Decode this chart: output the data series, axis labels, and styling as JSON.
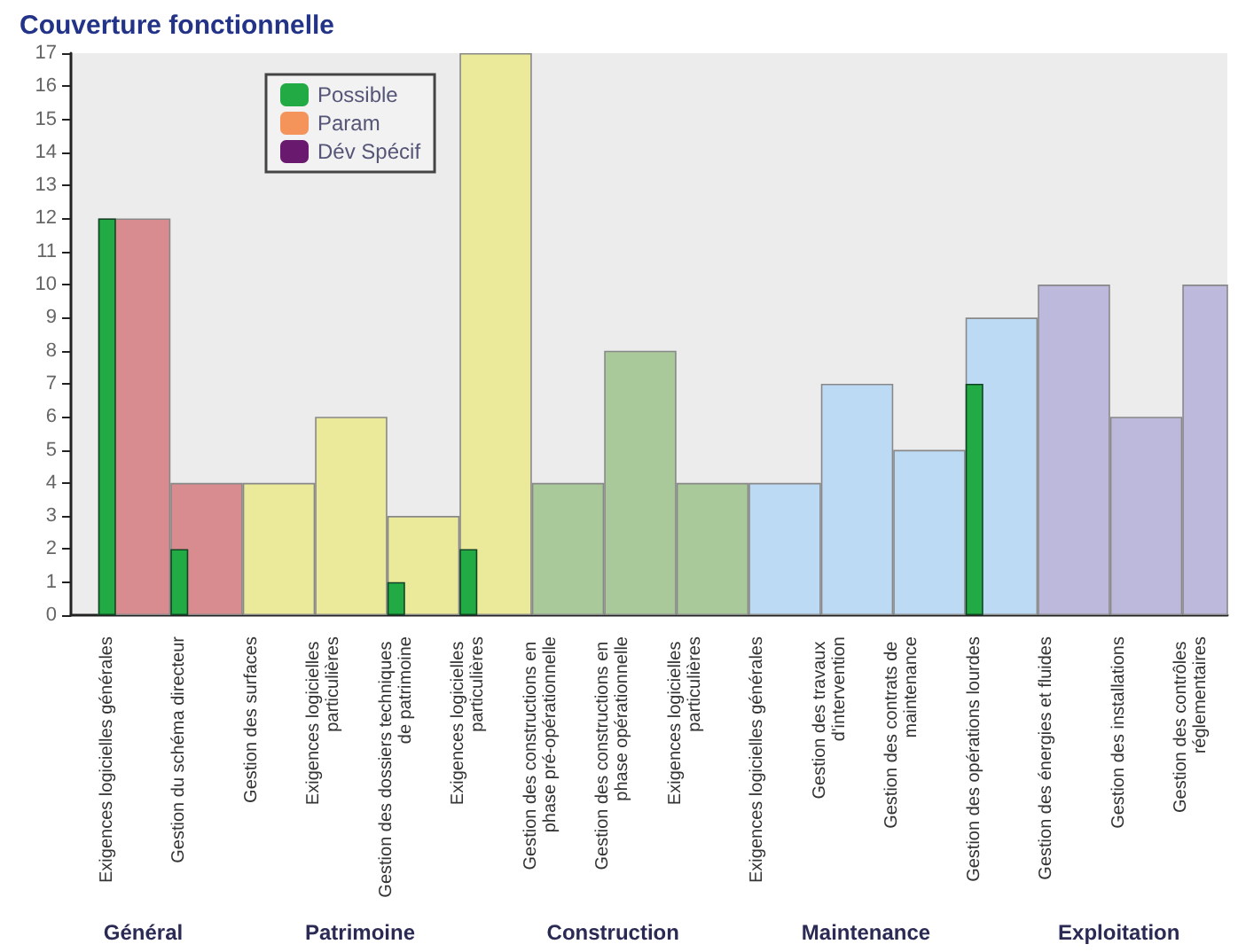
{
  "chart_data": {
    "type": "bar",
    "title": "Couverture fonctionnelle",
    "categories": [
      "Exigences logicielles générales",
      "Gestion du schéma directeur",
      "Gestion des surfaces",
      "Exigences logicielles particulières",
      "Gestion des dossiers techniques de patrimoine",
      "Exigences logicielles particulières",
      "Gestion des constructions en phase pré-opérationnelle",
      "Gestion des constructions en phase opérationnelle",
      "Exigences logicielles particulières",
      "Exigences logicielles générales",
      "Gestion des travaux d'intervention",
      "Gestion des contrats de maintenance",
      "Gestion des opérations lourdes",
      "Gestion des énergies et fluides",
      "Gestion des installations",
      "Gestion des contrôles réglementaires"
    ],
    "series": [
      {
        "colors": [
          "#d98c8f",
          "#d98c8f",
          "#eaea9a",
          "#eaea9a",
          "#eaea9a",
          "#eaea9a",
          "#a9c99a",
          "#a9c99a",
          "#a9c99a",
          "#bcdaf3",
          "#bcdaf3",
          "#bcdaf3",
          "#bcdaf3",
          "#bdb9dc",
          "#bdb9dc",
          "#bdb9dc"
        ],
        "values": [
          12,
          4,
          4,
          6,
          3,
          17,
          4,
          8,
          4,
          4,
          7,
          5,
          9,
          10,
          6,
          10
        ]
      },
      {
        "name": "Possible",
        "color": "#22aa44",
        "values": [
          12,
          2,
          null,
          null,
          1,
          2,
          null,
          null,
          null,
          null,
          null,
          null,
          7,
          null,
          null,
          null
        ]
      },
      {
        "name": "Param",
        "color": "#f4945a",
        "values": [
          null,
          null,
          null,
          null,
          null,
          null,
          null,
          null,
          null,
          null,
          null,
          null,
          null,
          null,
          null,
          null
        ]
      },
      {
        "name": "Dév Spécif",
        "color": "#6a1a6e",
        "values": [
          null,
          null,
          null,
          null,
          null,
          null,
          null,
          null,
          null,
          null,
          null,
          null,
          null,
          null,
          null,
          null
        ]
      }
    ],
    "annotations": [
      "Général",
      "Patrimoine",
      "Construction",
      "Maintenance",
      "Exploitation"
    ],
    "ylim": [
      0,
      17
    ],
    "yticks": [
      0,
      1,
      2,
      3,
      4,
      5,
      6,
      7,
      8,
      9,
      10,
      11,
      12,
      13,
      14,
      15,
      16,
      17
    ],
    "grid": false,
    "legend": "top left"
  }
}
